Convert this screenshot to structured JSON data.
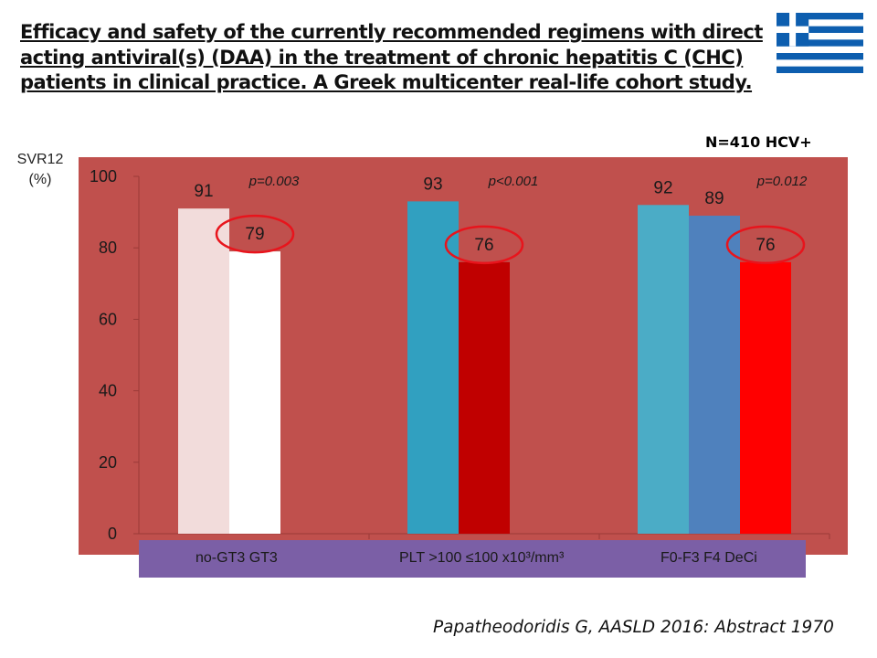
{
  "title_lines": [
    "Efficacy and safety of the currently recommended regimens with direct",
    "acting antiviral(s) (DAA)  in the treatment of chronic hepatitis C (CHC)",
    "patients in clinical practice. A Greek multicenter real-life cohort study."
  ],
  "n_label": "N=410 HCV+",
  "ylabel_line1": "SVR12",
  "ylabel_line2": "(%)",
  "citation": "Papatheodoridis G, AASLD 2016: Abstract 1970",
  "category_labels": {
    "group1": "no-GT3   GT3",
    "group2": "PLT >100  ≤100 x10³/mm³",
    "group3": "F0-F3   F4    DeCi"
  },
  "colors": {
    "plot_background": "#c0504d",
    "category_band": "#7b5fa6",
    "highlight_circle": "#e8141c"
  },
  "chart_data": {
    "type": "bar",
    "ylabel": "SVR12 (%)",
    "ylim": [
      0,
      100
    ],
    "yticks": [
      0,
      20,
      40,
      60,
      80,
      100
    ],
    "grid": false,
    "groups": [
      {
        "p_value": "p=0.003",
        "bars": [
          {
            "label": "no-GT3",
            "value": 91,
            "color": "#f2dcdb",
            "highlighted": false
          },
          {
            "label": "GT3",
            "value": 79,
            "color": "#ffffff",
            "highlighted": true
          }
        ]
      },
      {
        "p_value": "p<0.001",
        "bars": [
          {
            "label": "PLT >100",
            "value": 93,
            "color": "#31a0c0",
            "highlighted": false
          },
          {
            "label": "≤100 x10³/mm³",
            "value": 76,
            "color": "#c00000",
            "highlighted": true
          }
        ]
      },
      {
        "p_value": "p=0.012",
        "bars": [
          {
            "label": "F0-F3",
            "value": 92,
            "color": "#4bacc6",
            "highlighted": false
          },
          {
            "label": "F4",
            "value": 89,
            "color": "#4f81bd",
            "highlighted": false
          },
          {
            "label": "DeCi",
            "value": 76,
            "color": "#ff0000",
            "highlighted": true
          }
        ]
      }
    ]
  }
}
